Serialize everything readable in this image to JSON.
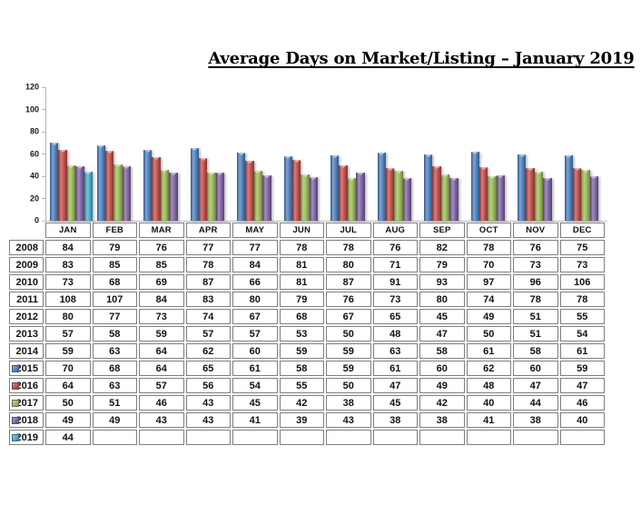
{
  "title": "Average Days on Market/Listing – January 2019",
  "chart_data": {
    "type": "bar",
    "title": "Average Days on Market/Listing – January 2019",
    "categories": [
      "JAN",
      "FEB",
      "MAR",
      "APR",
      "MAY",
      "JUN",
      "JUL",
      "AUG",
      "SEP",
      "OCT",
      "NOV",
      "DEC"
    ],
    "xlabel": "",
    "ylabel": "",
    "ylim": [
      0,
      120
    ],
    "y_ticks": [
      0,
      20,
      40,
      60,
      80,
      100,
      120
    ],
    "grid": false,
    "legend_position": "table-row-keys",
    "series": [
      {
        "name": "2015",
        "color": "#4F81BD",
        "values": [
          70,
          68,
          64,
          65,
          61,
          58,
          59,
          61,
          60,
          62,
          60,
          59
        ]
      },
      {
        "name": "2016",
        "color": "#C0504D",
        "values": [
          64,
          63,
          57,
          56,
          54,
          55,
          50,
          47,
          49,
          48,
          47,
          47
        ]
      },
      {
        "name": "2017",
        "color": "#9BBB59",
        "values": [
          50,
          51,
          46,
          43,
          45,
          42,
          38,
          45,
          42,
          40,
          44,
          46
        ]
      },
      {
        "name": "2018",
        "color": "#8064A2",
        "values": [
          49,
          49,
          43,
          43,
          41,
          39,
          43,
          38,
          38,
          41,
          38,
          40
        ]
      },
      {
        "name": "2019",
        "color": "#4BACC6",
        "values": [
          44,
          null,
          null,
          null,
          null,
          null,
          null,
          null,
          null,
          null,
          null,
          null
        ]
      }
    ]
  },
  "table": {
    "columns": [
      "JAN",
      "FEB",
      "MAR",
      "APR",
      "MAY",
      "JUN",
      "JUL",
      "AUG",
      "SEP",
      "OCT",
      "NOV",
      "DEC"
    ],
    "rows": [
      {
        "year": "2008",
        "legend_color": null,
        "values": [
          "84",
          "79",
          "76",
          "77",
          "77",
          "78",
          "78",
          "76",
          "82",
          "78",
          "76",
          "75"
        ]
      },
      {
        "year": "2009",
        "legend_color": null,
        "values": [
          "83",
          "85",
          "85",
          "78",
          "84",
          "81",
          "80",
          "71",
          "79",
          "70",
          "73",
          "73"
        ]
      },
      {
        "year": "2010",
        "legend_color": null,
        "values": [
          "73",
          "68",
          "69",
          "87",
          "66",
          "81",
          "87",
          "91",
          "93",
          "97",
          "96",
          "106"
        ]
      },
      {
        "year": "2011",
        "legend_color": null,
        "values": [
          "108",
          "107",
          "84",
          "83",
          "80",
          "79",
          "76",
          "73",
          "80",
          "74",
          "78",
          "78"
        ]
      },
      {
        "year": "2012",
        "legend_color": null,
        "values": [
          "80",
          "77",
          "73",
          "74",
          "67",
          "68",
          "67",
          "65",
          "45",
          "49",
          "51",
          "55"
        ]
      },
      {
        "year": "2013",
        "legend_color": null,
        "values": [
          "57",
          "58",
          "59",
          "57",
          "57",
          "53",
          "50",
          "48",
          "47",
          "50",
          "51",
          "54"
        ]
      },
      {
        "year": "2014",
        "legend_color": null,
        "values": [
          "59",
          "63",
          "64",
          "62",
          "60",
          "59",
          "59",
          "63",
          "58",
          "61",
          "58",
          "61"
        ]
      },
      {
        "year": "2015",
        "legend_color": "#4F81BD",
        "values": [
          "70",
          "68",
          "64",
          "65",
          "61",
          "58",
          "59",
          "61",
          "60",
          "62",
          "60",
          "59"
        ]
      },
      {
        "year": "2016",
        "legend_color": "#C0504D",
        "values": [
          "64",
          "63",
          "57",
          "56",
          "54",
          "55",
          "50",
          "47",
          "49",
          "48",
          "47",
          "47"
        ]
      },
      {
        "year": "2017",
        "legend_color": "#9BBB59",
        "values": [
          "50",
          "51",
          "46",
          "43",
          "45",
          "42",
          "38",
          "45",
          "42",
          "40",
          "44",
          "46"
        ]
      },
      {
        "year": "2018",
        "legend_color": "#8064A2",
        "values": [
          "49",
          "49",
          "43",
          "43",
          "41",
          "39",
          "43",
          "38",
          "38",
          "41",
          "38",
          "40"
        ]
      },
      {
        "year": "2019",
        "legend_color": "#4BACC6",
        "values": [
          "44",
          "",
          "",
          "",
          "",
          "",
          "",
          "",
          "",
          "",
          "",
          ""
        ]
      }
    ]
  },
  "colors": {
    "axis_line": "#b3b9c2",
    "table_border": "#7f7f7f",
    "text": "#111111",
    "background": "#ffffff"
  }
}
